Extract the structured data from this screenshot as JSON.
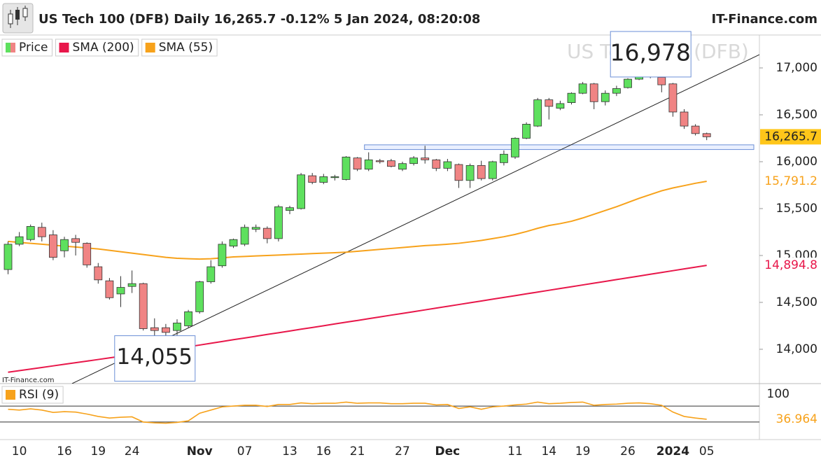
{
  "chart_data": {
    "type": "candlestick",
    "title": "US Tech 100 (DFB) Daily 16,265.7 -0.12% 5 Jan 2024, 08:20:08",
    "brand": "IT-Finance.com",
    "watermark": "US Tech 100 (DFB)",
    "source_note": "IT-Finance.com",
    "categories": [
      null,
      "10",
      null,
      null,
      null,
      "16",
      null,
      null,
      "19",
      null,
      null,
      "24",
      null,
      null,
      null,
      null,
      null,
      "Nov",
      null,
      null,
      null,
      "07",
      null,
      null,
      null,
      "13",
      null,
      null,
      "16",
      null,
      null,
      "21",
      null,
      null,
      null,
      "27",
      null,
      null,
      null,
      "Dec",
      null,
      null,
      null,
      null,
      null,
      "11",
      null,
      null,
      "14",
      null,
      null,
      "19",
      null,
      null,
      null,
      "26",
      null,
      null,
      null,
      "2024",
      null,
      null,
      "05"
    ],
    "ylim": [
      13634,
      17351
    ],
    "yticks": [
      {
        "value": 14000,
        "label": "14,000"
      },
      {
        "value": 14500,
        "label": "14,500"
      },
      {
        "value": 15000,
        "label": "15,000"
      },
      {
        "value": 15500,
        "label": "15,500"
      },
      {
        "value": 16000,
        "label": "16,000"
      },
      {
        "value": 16500,
        "label": "16,500"
      },
      {
        "value": 17000,
        "label": "17,000"
      }
    ],
    "price": {
      "name": "Price",
      "up_color": "#5ee05e",
      "down_color": "#f08484",
      "last_label": "16,265.7",
      "last_label_color": "#ffc61a",
      "open": [
        14850,
        15120,
        15170,
        15300,
        15220,
        15050,
        15180,
        15130,
        14880,
        14730,
        14590,
        14670,
        14700,
        14230,
        14230,
        14200,
        14250,
        14400,
        14720,
        14890,
        15100,
        15120,
        15280,
        15290,
        15180,
        15480,
        15500,
        15850,
        15780,
        15830,
        15810,
        16040,
        15920,
        16010,
        16010,
        15920,
        15980,
        16040,
        16020,
        15930,
        15970,
        15800,
        15960,
        15820,
        15990,
        16050,
        16250,
        16380,
        16660,
        16570,
        16630,
        16730,
        16830,
        16640,
        16730,
        16790,
        16880,
        16950,
        16900,
        16830,
        16530,
        16380,
        16300
      ],
      "high": [
        15150,
        15250,
        15330,
        15350,
        15270,
        15200,
        15220,
        15140,
        14920,
        14760,
        14780,
        14840,
        14710,
        14330,
        14270,
        14320,
        14420,
        14730,
        14950,
        15150,
        15180,
        15330,
        15330,
        15310,
        15540,
        15530,
        15880,
        15880,
        15870,
        15860,
        16060,
        16050,
        16100,
        16030,
        16030,
        16000,
        16060,
        16170,
        16030,
        16030,
        15980,
        15980,
        16010,
        16010,
        16120,
        16260,
        16420,
        16680,
        16680,
        16650,
        16740,
        16850,
        16840,
        16760,
        16810,
        16890,
        16970,
        16978,
        16920,
        16840,
        16560,
        16400,
        16310
      ],
      "low": [
        14800,
        15100,
        15150,
        15150,
        14950,
        14980,
        15000,
        14870,
        14700,
        14530,
        14450,
        14600,
        14200,
        14055,
        14100,
        14150,
        14230,
        14380,
        14700,
        14870,
        15080,
        15100,
        15250,
        15130,
        15150,
        15440,
        15490,
        15760,
        15760,
        15800,
        15800,
        15900,
        15900,
        15980,
        15940,
        15900,
        15960,
        15980,
        15900,
        15900,
        15720,
        15720,
        15800,
        15800,
        15960,
        16030,
        16240,
        16370,
        16450,
        16550,
        16610,
        16720,
        16560,
        16600,
        16700,
        16780,
        16870,
        16890,
        16740,
        16480,
        16350,
        16280,
        16230
      ],
      "close": [
        15120,
        15200,
        15310,
        15200,
        14980,
        15170,
        15140,
        14900,
        14740,
        14550,
        14660,
        14700,
        14220,
        14200,
        14180,
        14280,
        14400,
        14720,
        14880,
        15120,
        15170,
        15300,
        15300,
        15180,
        15520,
        15510,
        15860,
        15780,
        15840,
        15840,
        16050,
        15920,
        16020,
        16000,
        15950,
        15980,
        16040,
        16020,
        15930,
        16000,
        15800,
        15960,
        15820,
        16000,
        16080,
        16250,
        16400,
        16660,
        16590,
        16620,
        16730,
        16830,
        16640,
        16730,
        16780,
        16880,
        16930,
        16910,
        16820,
        16530,
        16380,
        16300,
        16265.7
      ]
    },
    "lines": [
      {
        "name": "SMA (200)",
        "color": "#e8174a",
        "last_label": "14,894.8",
        "values": [
          13755,
          13772,
          13789,
          13806,
          13823,
          13840,
          13857,
          13874,
          13891,
          13908,
          13925,
          13942,
          13959,
          13976,
          13993,
          14010,
          14027,
          14045,
          14064,
          14083,
          14102,
          14120,
          14139,
          14158,
          14176,
          14195,
          14214,
          14232,
          14251,
          14270,
          14289,
          14307,
          14326,
          14345,
          14364,
          14382,
          14401,
          14420,
          14439,
          14458,
          14477,
          14496,
          14515,
          14534,
          14553,
          14572,
          14591,
          14610,
          14629,
          14648,
          14667,
          14686,
          14705,
          14724,
          14743,
          14762,
          14781,
          14800,
          14819,
          14838,
          14857,
          14876,
          14894.8
        ]
      },
      {
        "name": "SMA (55)",
        "color": "#f7a21b",
        "last_label": "15,791.2",
        "values": [
          15150,
          15140,
          15130,
          15120,
          15110,
          15100,
          15090,
          15080,
          15070,
          15055,
          15040,
          15025,
          15010,
          14995,
          14980,
          14970,
          14965,
          14962,
          14965,
          14975,
          14985,
          14990,
          14995,
          15000,
          15005,
          15010,
          15015,
          15020,
          15025,
          15030,
          15035,
          15045,
          15055,
          15065,
          15075,
          15085,
          15095,
          15105,
          15112,
          15120,
          15130,
          15145,
          15160,
          15180,
          15200,
          15225,
          15255,
          15290,
          15320,
          15340,
          15365,
          15400,
          15440,
          15480,
          15520,
          15565,
          15610,
          15650,
          15690,
          15720,
          15745,
          15770,
          15791.2
        ]
      }
    ],
    "annotations": [
      {
        "label": "14,055",
        "value": 14055,
        "index": 13,
        "side": "below"
      },
      {
        "label": "16,978",
        "value": 16978,
        "index": 57,
        "side": "above"
      }
    ],
    "trendline": {
      "index": [
        13,
        43
      ],
      "values": [
        14055,
        15780
      ],
      "color": "#222222"
    },
    "zone": {
      "from_index": 32,
      "values": [
        16130,
        16180
      ],
      "color": "#6b8fd6"
    },
    "rsi": {
      "name": "RSI (9)",
      "color": "#f7a21b",
      "ylim": [
        0,
        100
      ],
      "yticks": [
        100
      ],
      "levels": [
        70,
        30
      ],
      "last_label": "36.964",
      "values": [
        62,
        60,
        63,
        60,
        54,
        56,
        55,
        50,
        44,
        40,
        42,
        43,
        30,
        28,
        27,
        29,
        33,
        52,
        60,
        68,
        70,
        72,
        72,
        69,
        74,
        74,
        78,
        76,
        77,
        77,
        80,
        77,
        78,
        78,
        76,
        76,
        77,
        77,
        73,
        74,
        64,
        68,
        62,
        68,
        70,
        73,
        75,
        80,
        76,
        77,
        79,
        80,
        72,
        74,
        75,
        77,
        78,
        76,
        72,
        55,
        44,
        40,
        36.964
      ]
    }
  }
}
